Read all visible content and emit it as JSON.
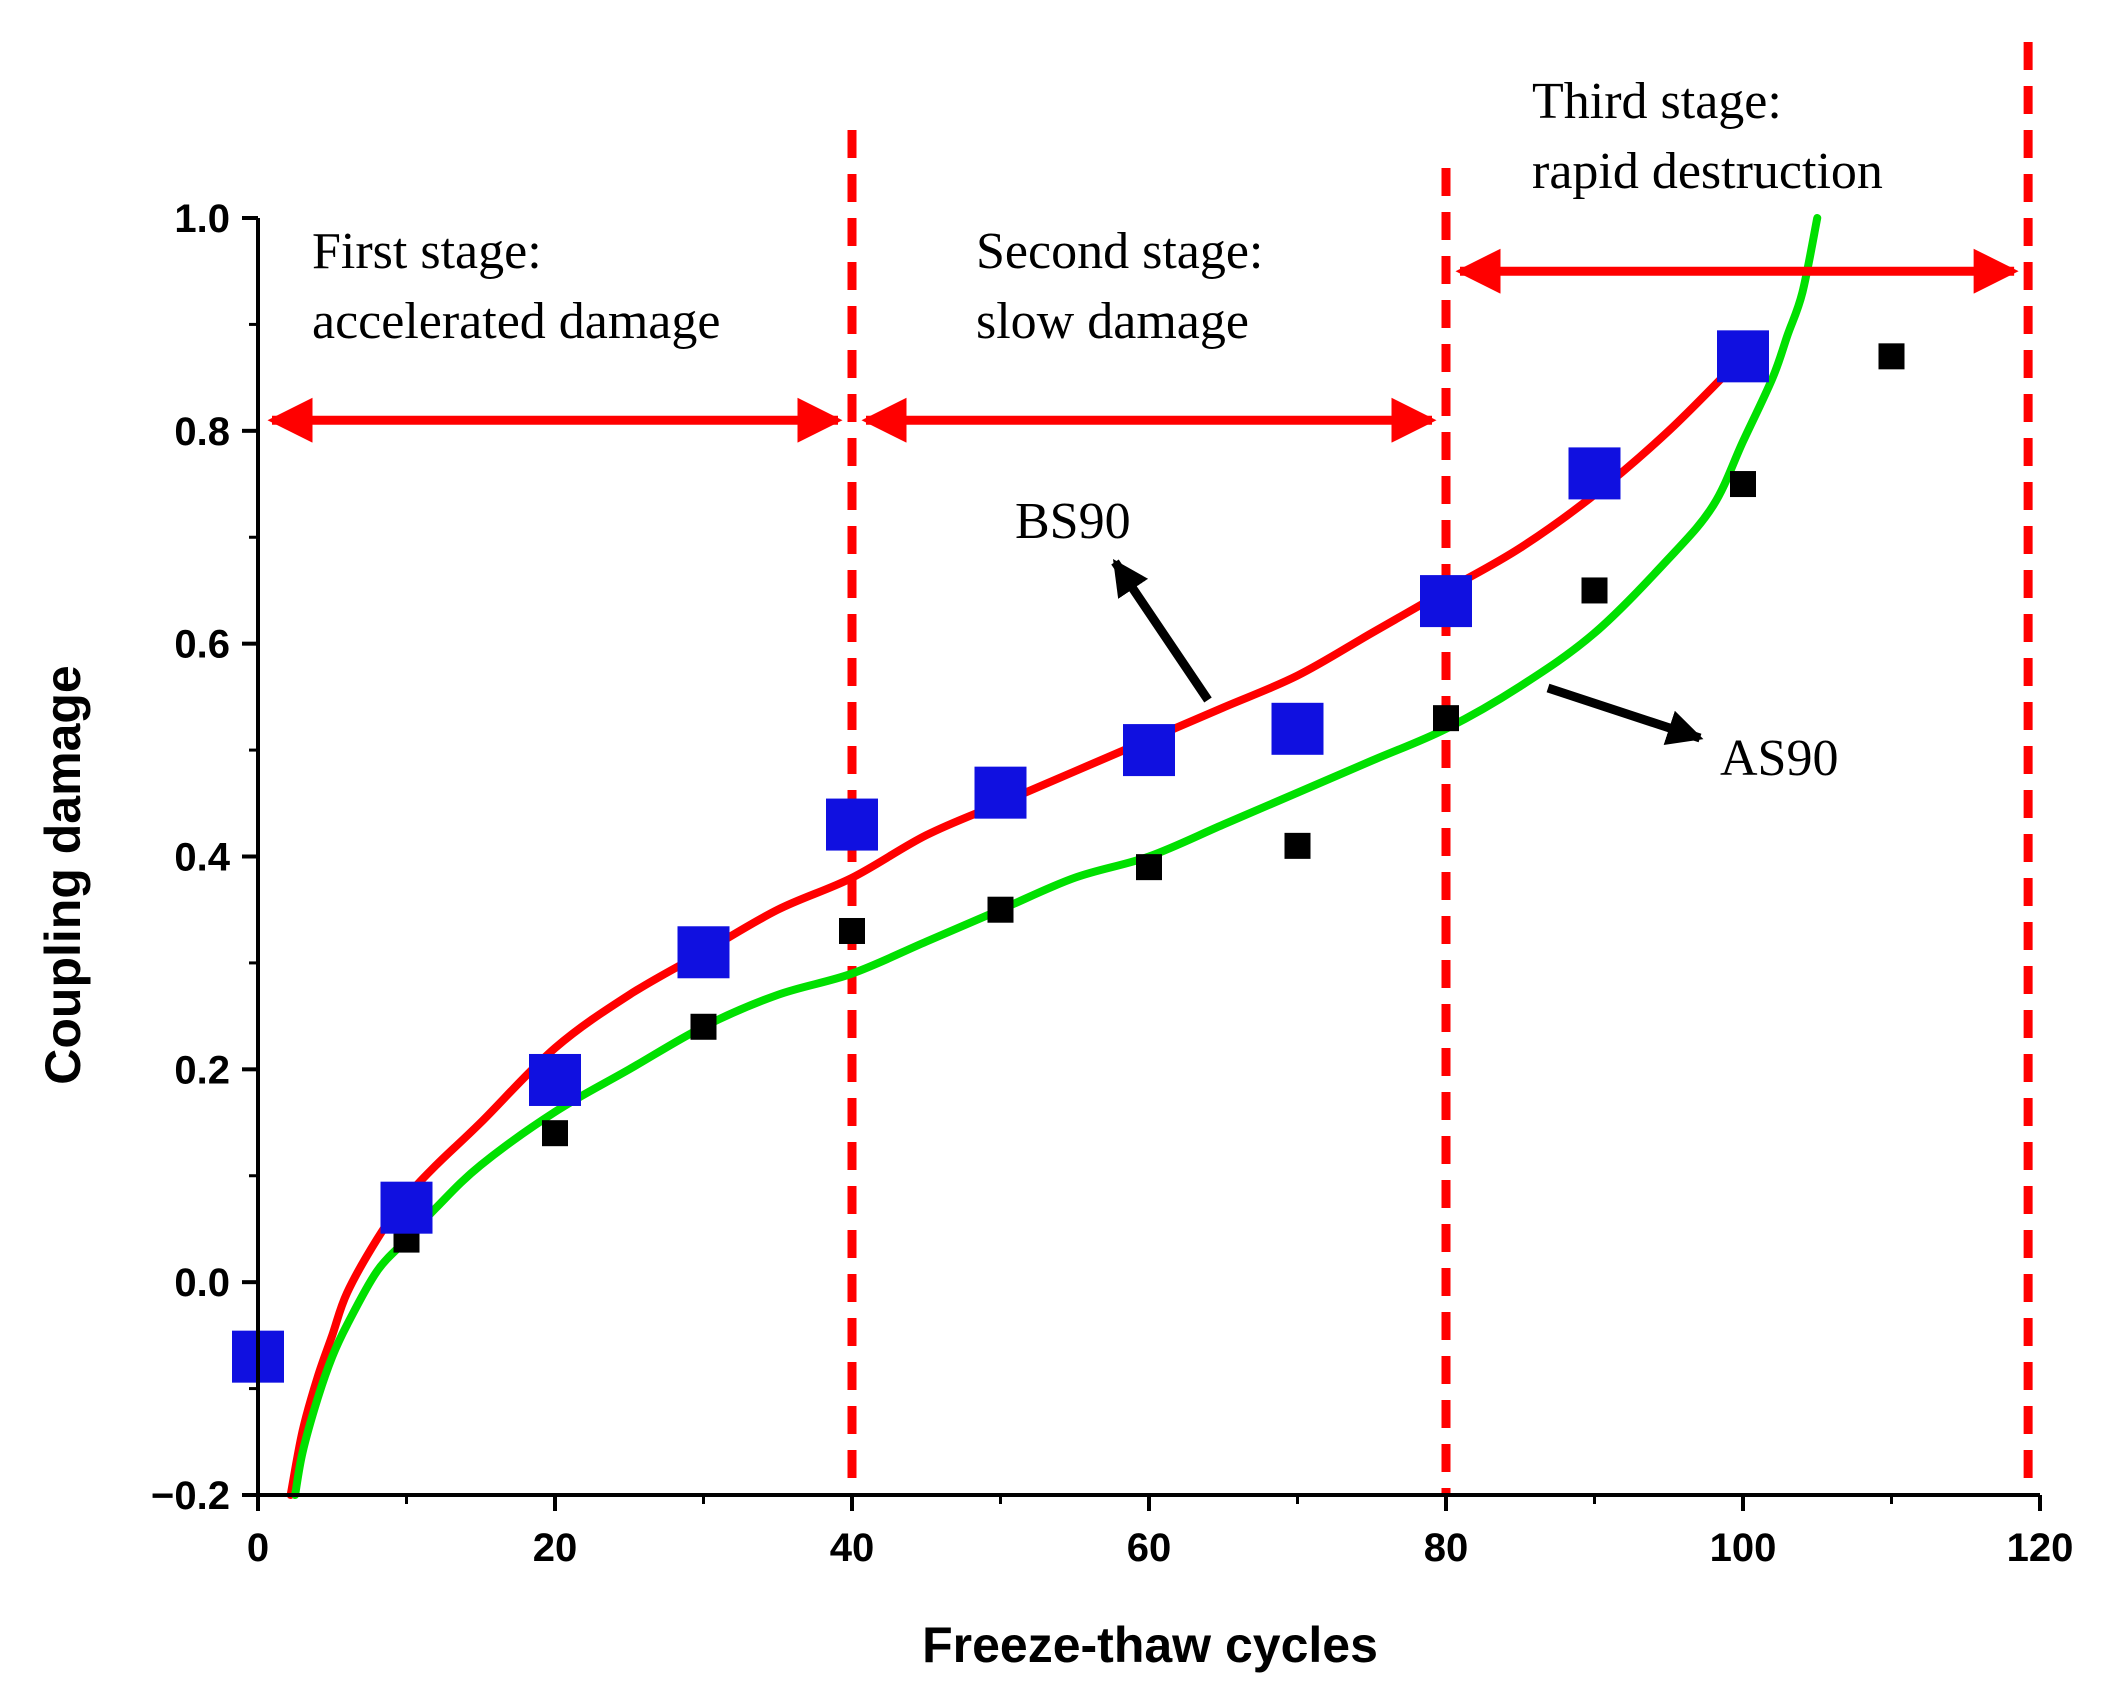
{
  "chart_data": {
    "type": "scatter",
    "title": "",
    "xlabel": "Freeze-thaw cycles",
    "ylabel": "Coupling damage",
    "xlim": [
      0,
      120
    ],
    "ylim": [
      -0.2,
      1.0
    ],
    "xticks": [
      0,
      20,
      40,
      60,
      80,
      100,
      120
    ],
    "yticks": [
      -0.2,
      0.0,
      0.2,
      0.4,
      0.6,
      0.8,
      1.0
    ],
    "xtick_labels": [
      "0",
      "20",
      "40",
      "60",
      "80",
      "100",
      "120"
    ],
    "ytick_labels": [
      "−0.2",
      "0.0",
      "0.2",
      "0.4",
      "0.6",
      "0.8",
      "1.0"
    ],
    "series": [
      {
        "name": "BS90",
        "marker": "large square",
        "color": "#1010e0",
        "x": [
          0,
          10,
          20,
          30,
          40,
          50,
          60,
          70,
          80,
          90,
          100
        ],
        "y": [
          -0.07,
          0.07,
          0.19,
          0.31,
          0.43,
          0.46,
          0.5,
          0.52,
          0.64,
          0.76,
          0.87
        ]
      },
      {
        "name": "AS90",
        "marker": "small square",
        "color": "#000000",
        "x": [
          10,
          20,
          30,
          40,
          50,
          60,
          70,
          80,
          90,
          100,
          110
        ],
        "y": [
          0.04,
          0.14,
          0.24,
          0.33,
          0.35,
          0.39,
          0.41,
          0.53,
          0.65,
          0.75,
          0.87
        ]
      }
    ],
    "fit_curves": [
      {
        "name": "BS90 fit",
        "color": "#ff0000",
        "x": [
          2.2,
          3,
          4,
          5,
          6,
          8,
          10,
          12,
          15,
          20,
          25,
          30,
          35,
          40,
          45,
          50,
          55,
          60,
          65,
          70,
          75,
          80,
          85,
          90,
          95,
          100
        ],
        "y": [
          -0.2,
          -0.14,
          -0.09,
          -0.05,
          -0.01,
          0.04,
          0.08,
          0.11,
          0.15,
          0.22,
          0.27,
          0.31,
          0.35,
          0.38,
          0.42,
          0.45,
          0.48,
          0.51,
          0.54,
          0.57,
          0.61,
          0.65,
          0.69,
          0.74,
          0.8,
          0.87
        ]
      },
      {
        "name": "AS90 fit",
        "color": "#00e000",
        "x": [
          2.5,
          3,
          4,
          5,
          6,
          8,
          10,
          12,
          15,
          20,
          25,
          30,
          35,
          40,
          45,
          50,
          55,
          60,
          65,
          70,
          75,
          80,
          85,
          90,
          95,
          98,
          100,
          102,
          103,
          104,
          105
        ],
        "y": [
          -0.2,
          -0.16,
          -0.11,
          -0.07,
          -0.04,
          0.01,
          0.04,
          0.07,
          0.11,
          0.16,
          0.2,
          0.24,
          0.27,
          0.29,
          0.32,
          0.35,
          0.38,
          0.4,
          0.43,
          0.46,
          0.49,
          0.52,
          0.56,
          0.61,
          0.68,
          0.73,
          0.79,
          0.85,
          0.89,
          0.93,
          1.0
        ]
      }
    ],
    "stage_boundaries": [
      40,
      80,
      119.2
    ],
    "stages": [
      {
        "line1": "First stage:",
        "line2": "accelerated damage",
        "from": 0,
        "to": 40,
        "arrow_y": 0.81
      },
      {
        "line1": "Second stage:",
        "line2": "slow damage",
        "from": 40,
        "to": 80,
        "arrow_y": 0.81
      },
      {
        "line1": "Third stage:",
        "line2": "rapid destruction",
        "from": 80,
        "to": 119.2,
        "arrow_y": 0.95
      }
    ],
    "annotations": [
      {
        "text": "BS90",
        "points_to": [
          64,
          0.54
        ]
      },
      {
        "text": "AS90",
        "points_to": [
          87,
          0.56
        ]
      }
    ]
  },
  "colors": {
    "stage_line": "#ff0000",
    "axis": "#000000"
  }
}
